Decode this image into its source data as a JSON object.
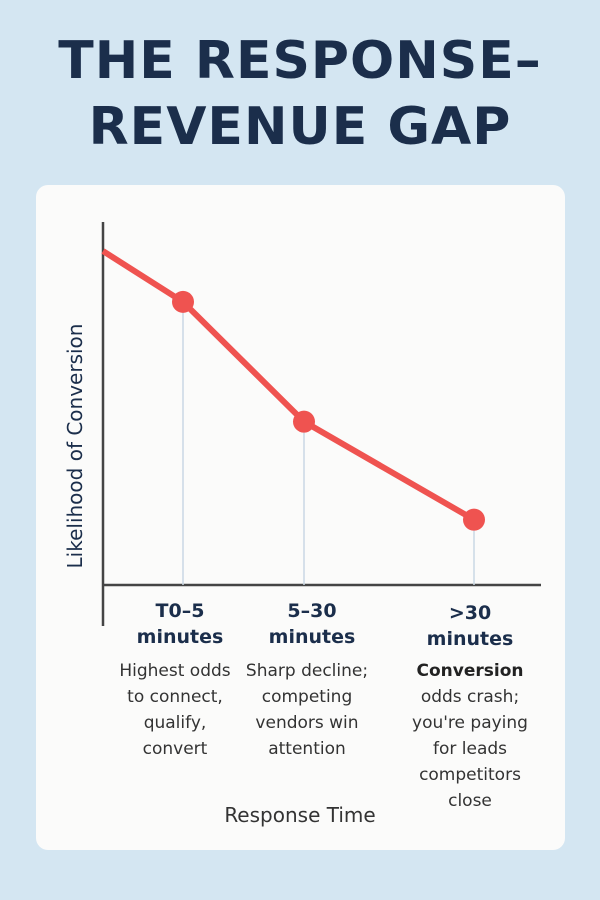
{
  "chart_data": {
    "type": "line",
    "title": "THE RESPONSE–REVENUE GAP",
    "ylabel": "Likelihood of Conversion",
    "xlabel": "Response Time",
    "categories": [
      null,
      "T0–5 minutes",
      "5–30 minutes",
      ">30 minutes"
    ],
    "values": [
      92,
      78,
      45,
      18
    ],
    "color": "#ef5350",
    "ylim": [
      0,
      100
    ],
    "notes": [
      null,
      {
        "text": "Highest odds to connect, qualify, convert"
      },
      {
        "text": "Sharp decline; competing vendors win attention"
      },
      {
        "bold": "Conversion",
        "text": "odds crash; you're paying for leads competitors close"
      }
    ]
  }
}
